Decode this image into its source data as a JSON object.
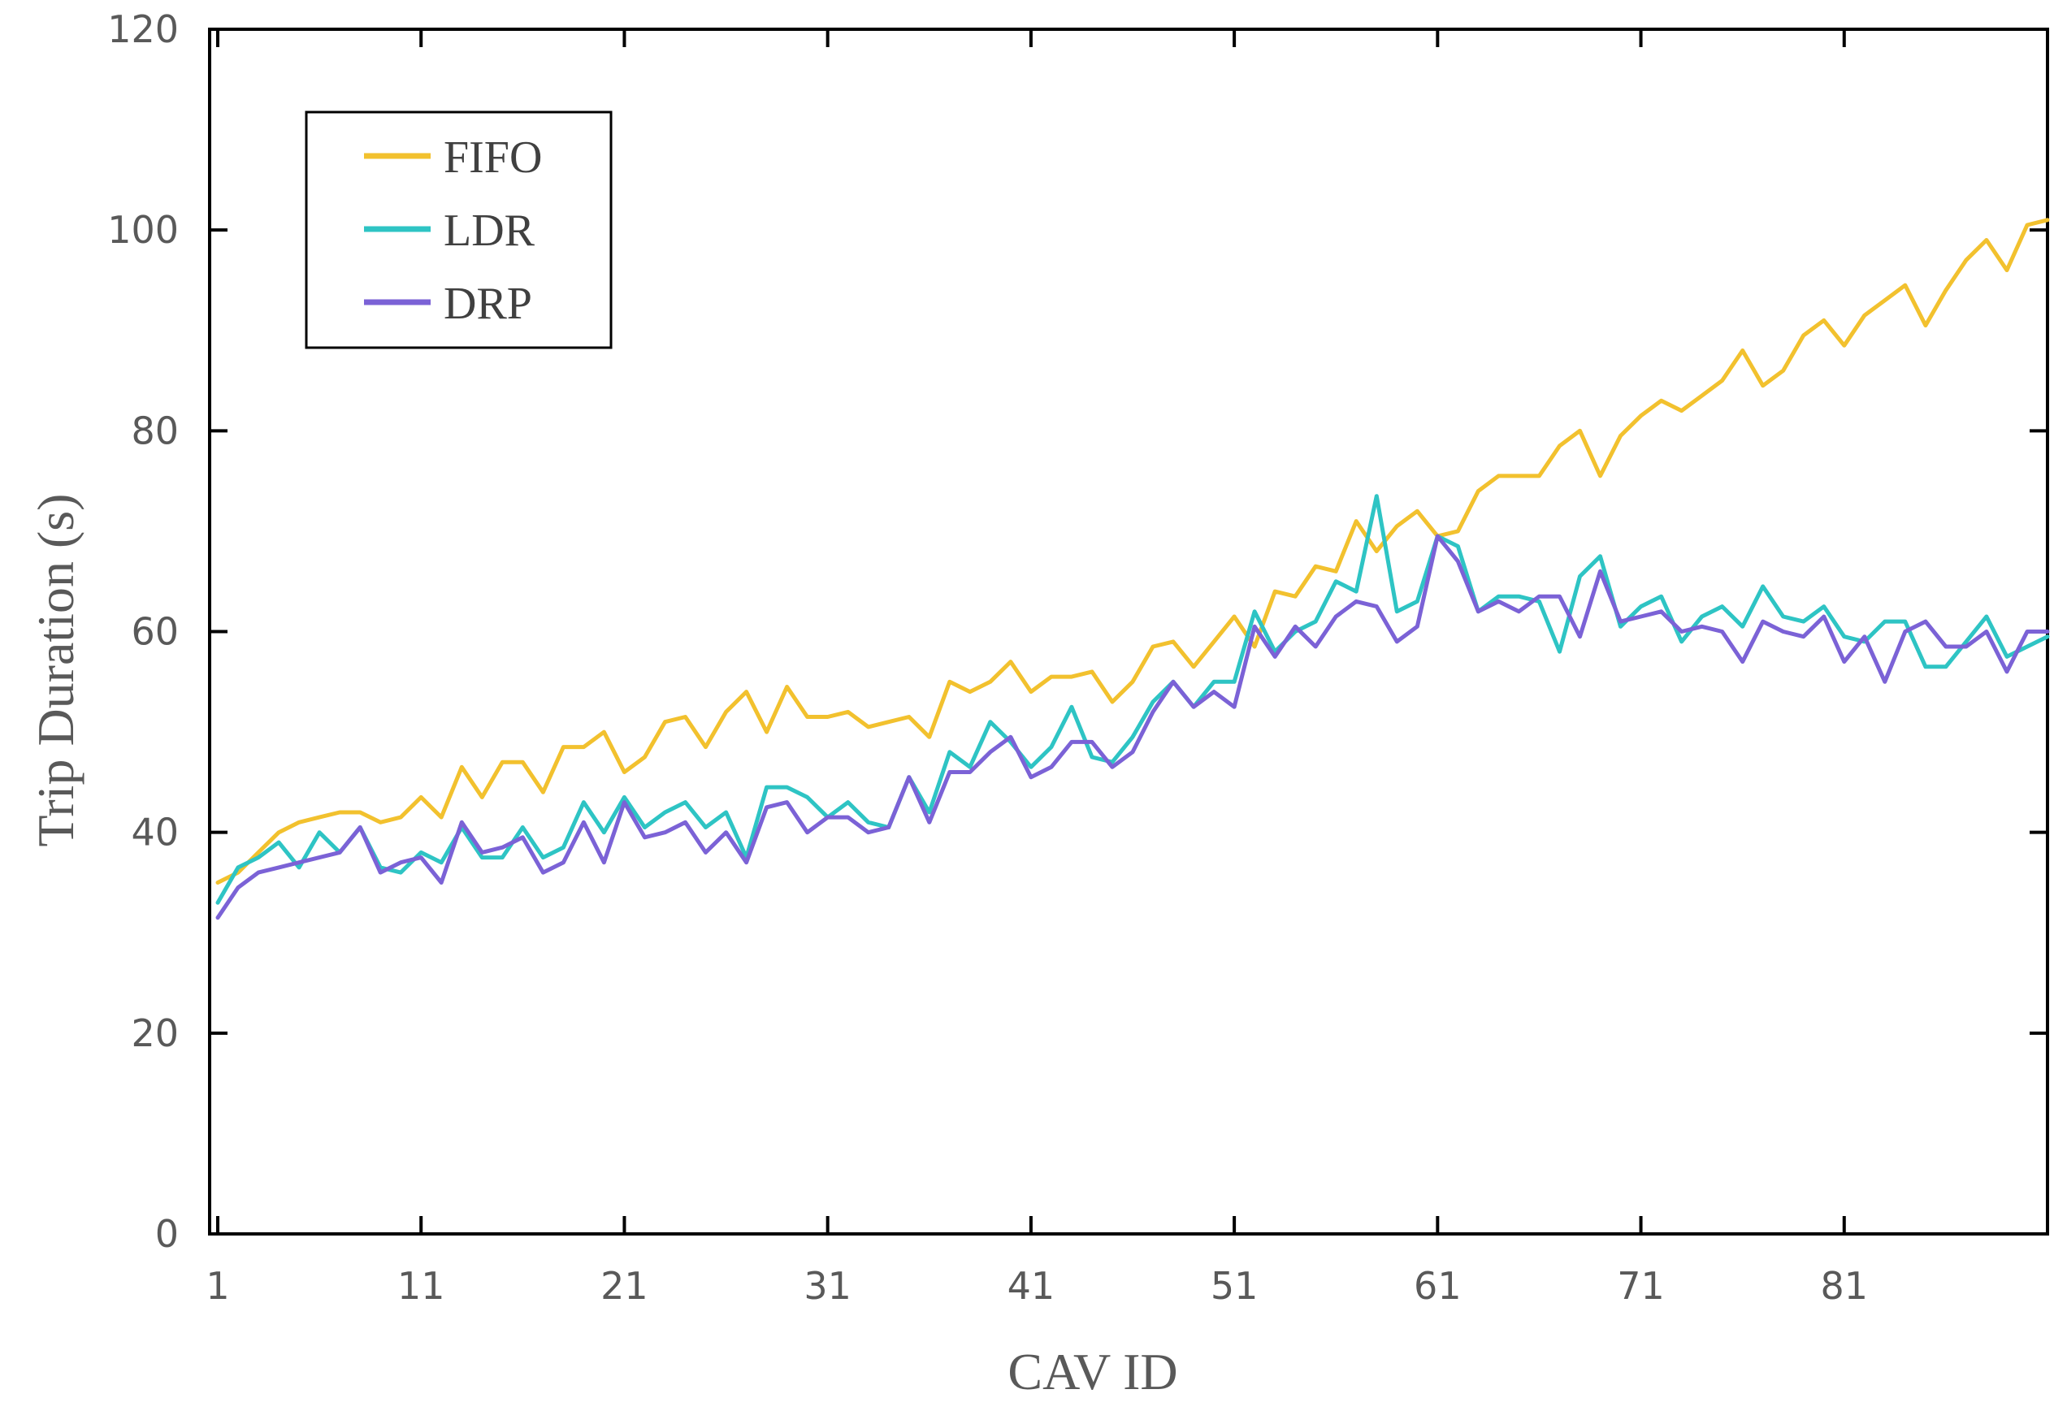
{
  "chart_data": {
    "type": "line",
    "title": "",
    "xlabel": "CAV ID",
    "ylabel": "Trip Duration (s)",
    "xlim": [
      1,
      91
    ],
    "ylim": [
      0,
      120
    ],
    "xticks": [
      1,
      11,
      21,
      31,
      41,
      51,
      61,
      71,
      81
    ],
    "yticks": [
      0,
      20,
      40,
      60,
      80,
      100,
      120
    ],
    "grid": false,
    "legend_position": "top-left",
    "x": [
      1,
      2,
      3,
      4,
      5,
      6,
      7,
      8,
      9,
      10,
      11,
      12,
      13,
      14,
      15,
      16,
      17,
      18,
      19,
      20,
      21,
      22,
      23,
      24,
      25,
      26,
      27,
      28,
      29,
      30,
      31,
      32,
      33,
      34,
      35,
      36,
      37,
      38,
      39,
      40,
      41,
      42,
      43,
      44,
      45,
      46,
      47,
      48,
      49,
      50,
      51,
      52,
      53,
      54,
      55,
      56,
      57,
      58,
      59,
      60,
      61,
      62,
      63,
      64,
      65,
      66,
      67,
      68,
      69,
      70,
      71,
      72,
      73,
      74,
      75,
      76,
      77,
      78,
      79,
      80,
      81,
      82,
      83,
      84,
      85,
      86,
      87,
      88,
      89,
      90,
      91
    ],
    "series": [
      {
        "name": "FIFO",
        "color": "#F2C12E",
        "values": [
          35.0,
          36.0,
          38.0,
          40.0,
          41.0,
          41.5,
          42.0,
          42.0,
          41.0,
          41.5,
          43.5,
          41.5,
          46.5,
          43.5,
          47.0,
          47.0,
          44.0,
          48.5,
          48.5,
          50.0,
          46.0,
          47.5,
          51.0,
          51.5,
          48.5,
          52.0,
          54.0,
          50.0,
          54.5,
          51.5,
          51.5,
          52.0,
          50.5,
          51.0,
          51.5,
          49.5,
          55.0,
          54.0,
          55.0,
          57.0,
          54.0,
          55.5,
          55.5,
          56.0,
          53.0,
          55.0,
          58.5,
          59.0,
          56.5,
          59.0,
          61.5,
          58.5,
          64.0,
          63.5,
          66.5,
          66.0,
          71.0,
          68.0,
          70.5,
          72.0,
          69.5,
          70.0,
          74.0,
          75.5,
          75.5,
          75.5,
          78.5,
          80.0,
          75.5,
          79.5,
          81.5,
          83.0,
          82.0,
          83.5,
          85.0,
          88.0,
          84.5,
          86.0,
          89.5,
          91.0,
          88.5,
          91.5,
          93.0,
          94.5,
          90.5,
          94.0,
          97.0,
          99.0,
          96.0,
          100.5,
          101.0
        ]
      },
      {
        "name": "LDR",
        "color": "#2EC4C4",
        "values": [
          33.0,
          36.5,
          37.5,
          39.0,
          36.5,
          40.0,
          38.0,
          40.5,
          36.5,
          36.0,
          38.0,
          37.0,
          40.5,
          37.5,
          37.5,
          40.5,
          37.5,
          38.5,
          43.0,
          40.0,
          43.5,
          40.5,
          42.0,
          43.0,
          40.5,
          42.0,
          37.5,
          44.5,
          44.5,
          43.5,
          41.5,
          43.0,
          41.0,
          40.5,
          45.5,
          42.0,
          48.0,
          46.5,
          51.0,
          49.0,
          46.5,
          48.5,
          52.5,
          47.5,
          47.0,
          49.5,
          53.0,
          55.0,
          52.5,
          55.0,
          55.0,
          62.0,
          58.0,
          60.0,
          61.0,
          65.0,
          64.0,
          73.5,
          62.0,
          63.0,
          69.5,
          68.5,
          62.0,
          63.5,
          63.5,
          63.0,
          58.0,
          65.5,
          67.5,
          60.5,
          62.5,
          63.5,
          59.0,
          61.5,
          62.5,
          60.5,
          64.5,
          61.5,
          61.0,
          62.5,
          59.5,
          59.0,
          61.0,
          61.0,
          56.5,
          56.5,
          59.0,
          61.5,
          57.5,
          58.5,
          59.5
        ]
      },
      {
        "name": "DRP",
        "color": "#7B62D6",
        "values": [
          31.5,
          34.5,
          36.0,
          36.5,
          37.0,
          37.5,
          38.0,
          40.5,
          36.0,
          37.0,
          37.5,
          35.0,
          41.0,
          38.0,
          38.5,
          39.5,
          36.0,
          37.0,
          41.0,
          37.0,
          43.0,
          39.5,
          40.0,
          41.0,
          38.0,
          40.0,
          37.0,
          42.5,
          43.0,
          40.0,
          41.5,
          41.5,
          40.0,
          40.5,
          45.5,
          41.0,
          46.0,
          46.0,
          48.0,
          49.5,
          45.5,
          46.5,
          49.0,
          49.0,
          46.5,
          48.0,
          52.0,
          55.0,
          52.5,
          54.0,
          52.5,
          60.5,
          57.5,
          60.5,
          58.5,
          61.5,
          63.0,
          62.5,
          59.0,
          60.5,
          69.5,
          67.0,
          62.0,
          63.0,
          62.0,
          63.5,
          63.5,
          59.5,
          66.0,
          61.0,
          61.5,
          62.0,
          60.0,
          60.5,
          60.0,
          57.0,
          61.0,
          60.0,
          59.5,
          61.5,
          57.0,
          59.5,
          55.0,
          60.0,
          61.0,
          58.5,
          58.5,
          60.0,
          56.0,
          60.0,
          60.0
        ]
      }
    ]
  }
}
